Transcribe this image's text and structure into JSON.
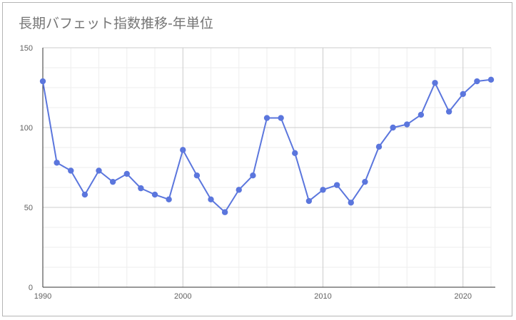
{
  "chart_data": {
    "type": "line",
    "title": "長期バフェット指数推移-年単位",
    "xlabel": "",
    "ylabel": "",
    "xlim": [
      1990,
      2022
    ],
    "ylim": [
      0,
      150
    ],
    "x_ticks": [
      1990,
      2000,
      2010,
      2020
    ],
    "y_ticks": [
      0,
      50,
      100,
      150
    ],
    "grid": true,
    "legend": "none",
    "series": [
      {
        "color": "#5b76dd",
        "x": [
          1990,
          1991,
          1992,
          1993,
          1994,
          1995,
          1996,
          1997,
          1998,
          1999,
          2000,
          2001,
          2002,
          2003,
          2004,
          2005,
          2006,
          2007,
          2008,
          2009,
          2010,
          2011,
          2012,
          2013,
          2014,
          2015,
          2016,
          2017,
          2018,
          2019,
          2020,
          2021,
          2022
        ],
        "y": [
          129,
          78,
          73,
          58,
          73,
          66,
          71,
          62,
          58,
          55,
          86,
          70,
          55,
          47,
          61,
          70,
          106,
          106,
          84,
          54,
          61,
          64,
          53,
          66,
          88,
          100,
          102,
          108,
          128,
          110,
          121,
          129,
          130
        ]
      }
    ]
  }
}
